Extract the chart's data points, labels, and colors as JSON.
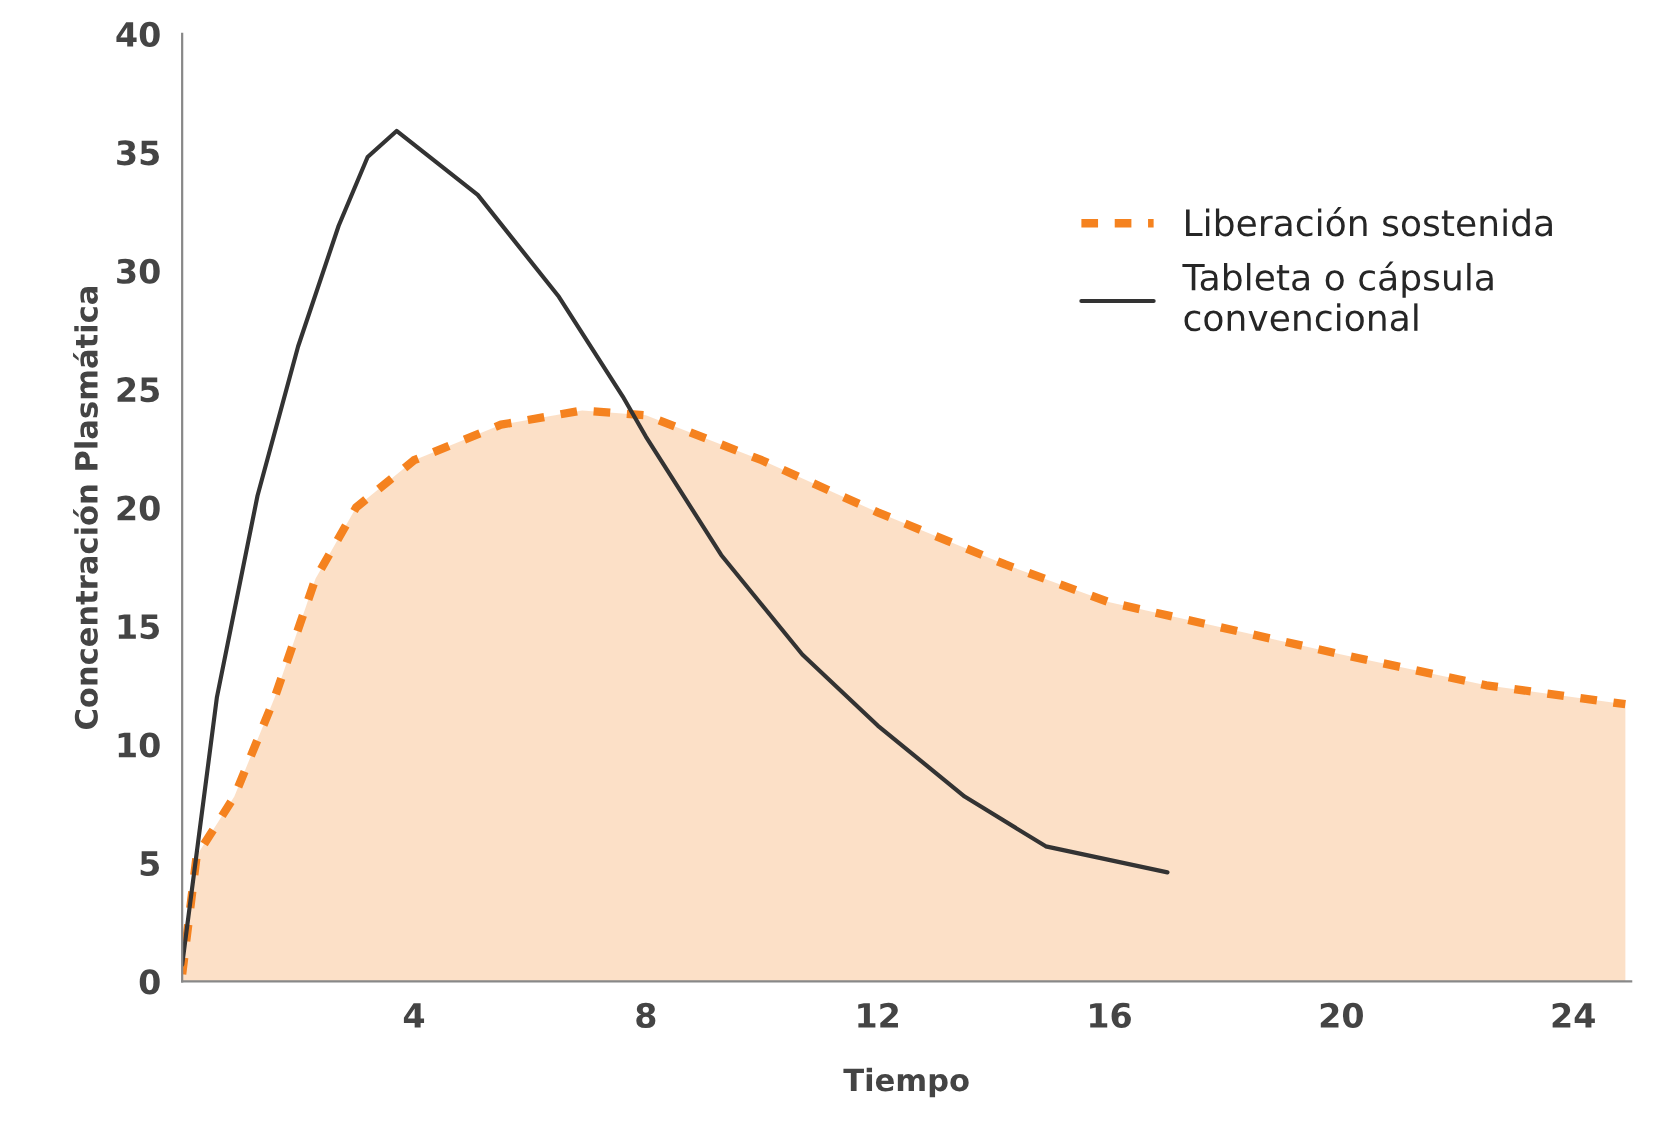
{
  "chart_data": {
    "type": "line",
    "xlabel": "Tiempo",
    "ylabel": "Concentración Plasmática",
    "xlim": [
      0,
      25
    ],
    "ylim": [
      0,
      40
    ],
    "xticks": [
      4,
      8,
      12,
      16,
      20,
      24
    ],
    "yticks": [
      0,
      5,
      10,
      15,
      20,
      25,
      30,
      35,
      40
    ],
    "grid": false,
    "legend": "top right",
    "series": [
      {
        "name": "Liberación sostenida",
        "type": "area",
        "color": "#f5821f",
        "line_style": "dashed",
        "x": [
          0,
          0.25,
          0.9,
          1.6,
          2.3,
          3,
          4,
          5.5,
          6.9,
          8,
          10,
          12,
          14.2,
          16,
          20,
          22.5,
          24.9
        ],
        "values": [
          0.3,
          5.3,
          7.8,
          12,
          17,
          20,
          22,
          23.5,
          24.1,
          23.9,
          22,
          19.8,
          17.6,
          16,
          13.8,
          12.5,
          11.7
        ]
      },
      {
        "name": "Tableta o cápsula\nconvencional",
        "color": "#333333",
        "line_style": "solid",
        "x": [
          0,
          0.6,
          1.3,
          2,
          2.7,
          3.2,
          3.7,
          5.1,
          6.5,
          7.6,
          8,
          9.3,
          10.7,
          12,
          13.5,
          14.9,
          17
        ],
        "values": [
          0.7,
          12,
          20.5,
          26.8,
          31.9,
          34.8,
          35.9,
          33.2,
          28.9,
          24.7,
          23,
          18,
          13.8,
          10.8,
          7.8,
          5.7,
          4.6
        ]
      }
    ]
  }
}
